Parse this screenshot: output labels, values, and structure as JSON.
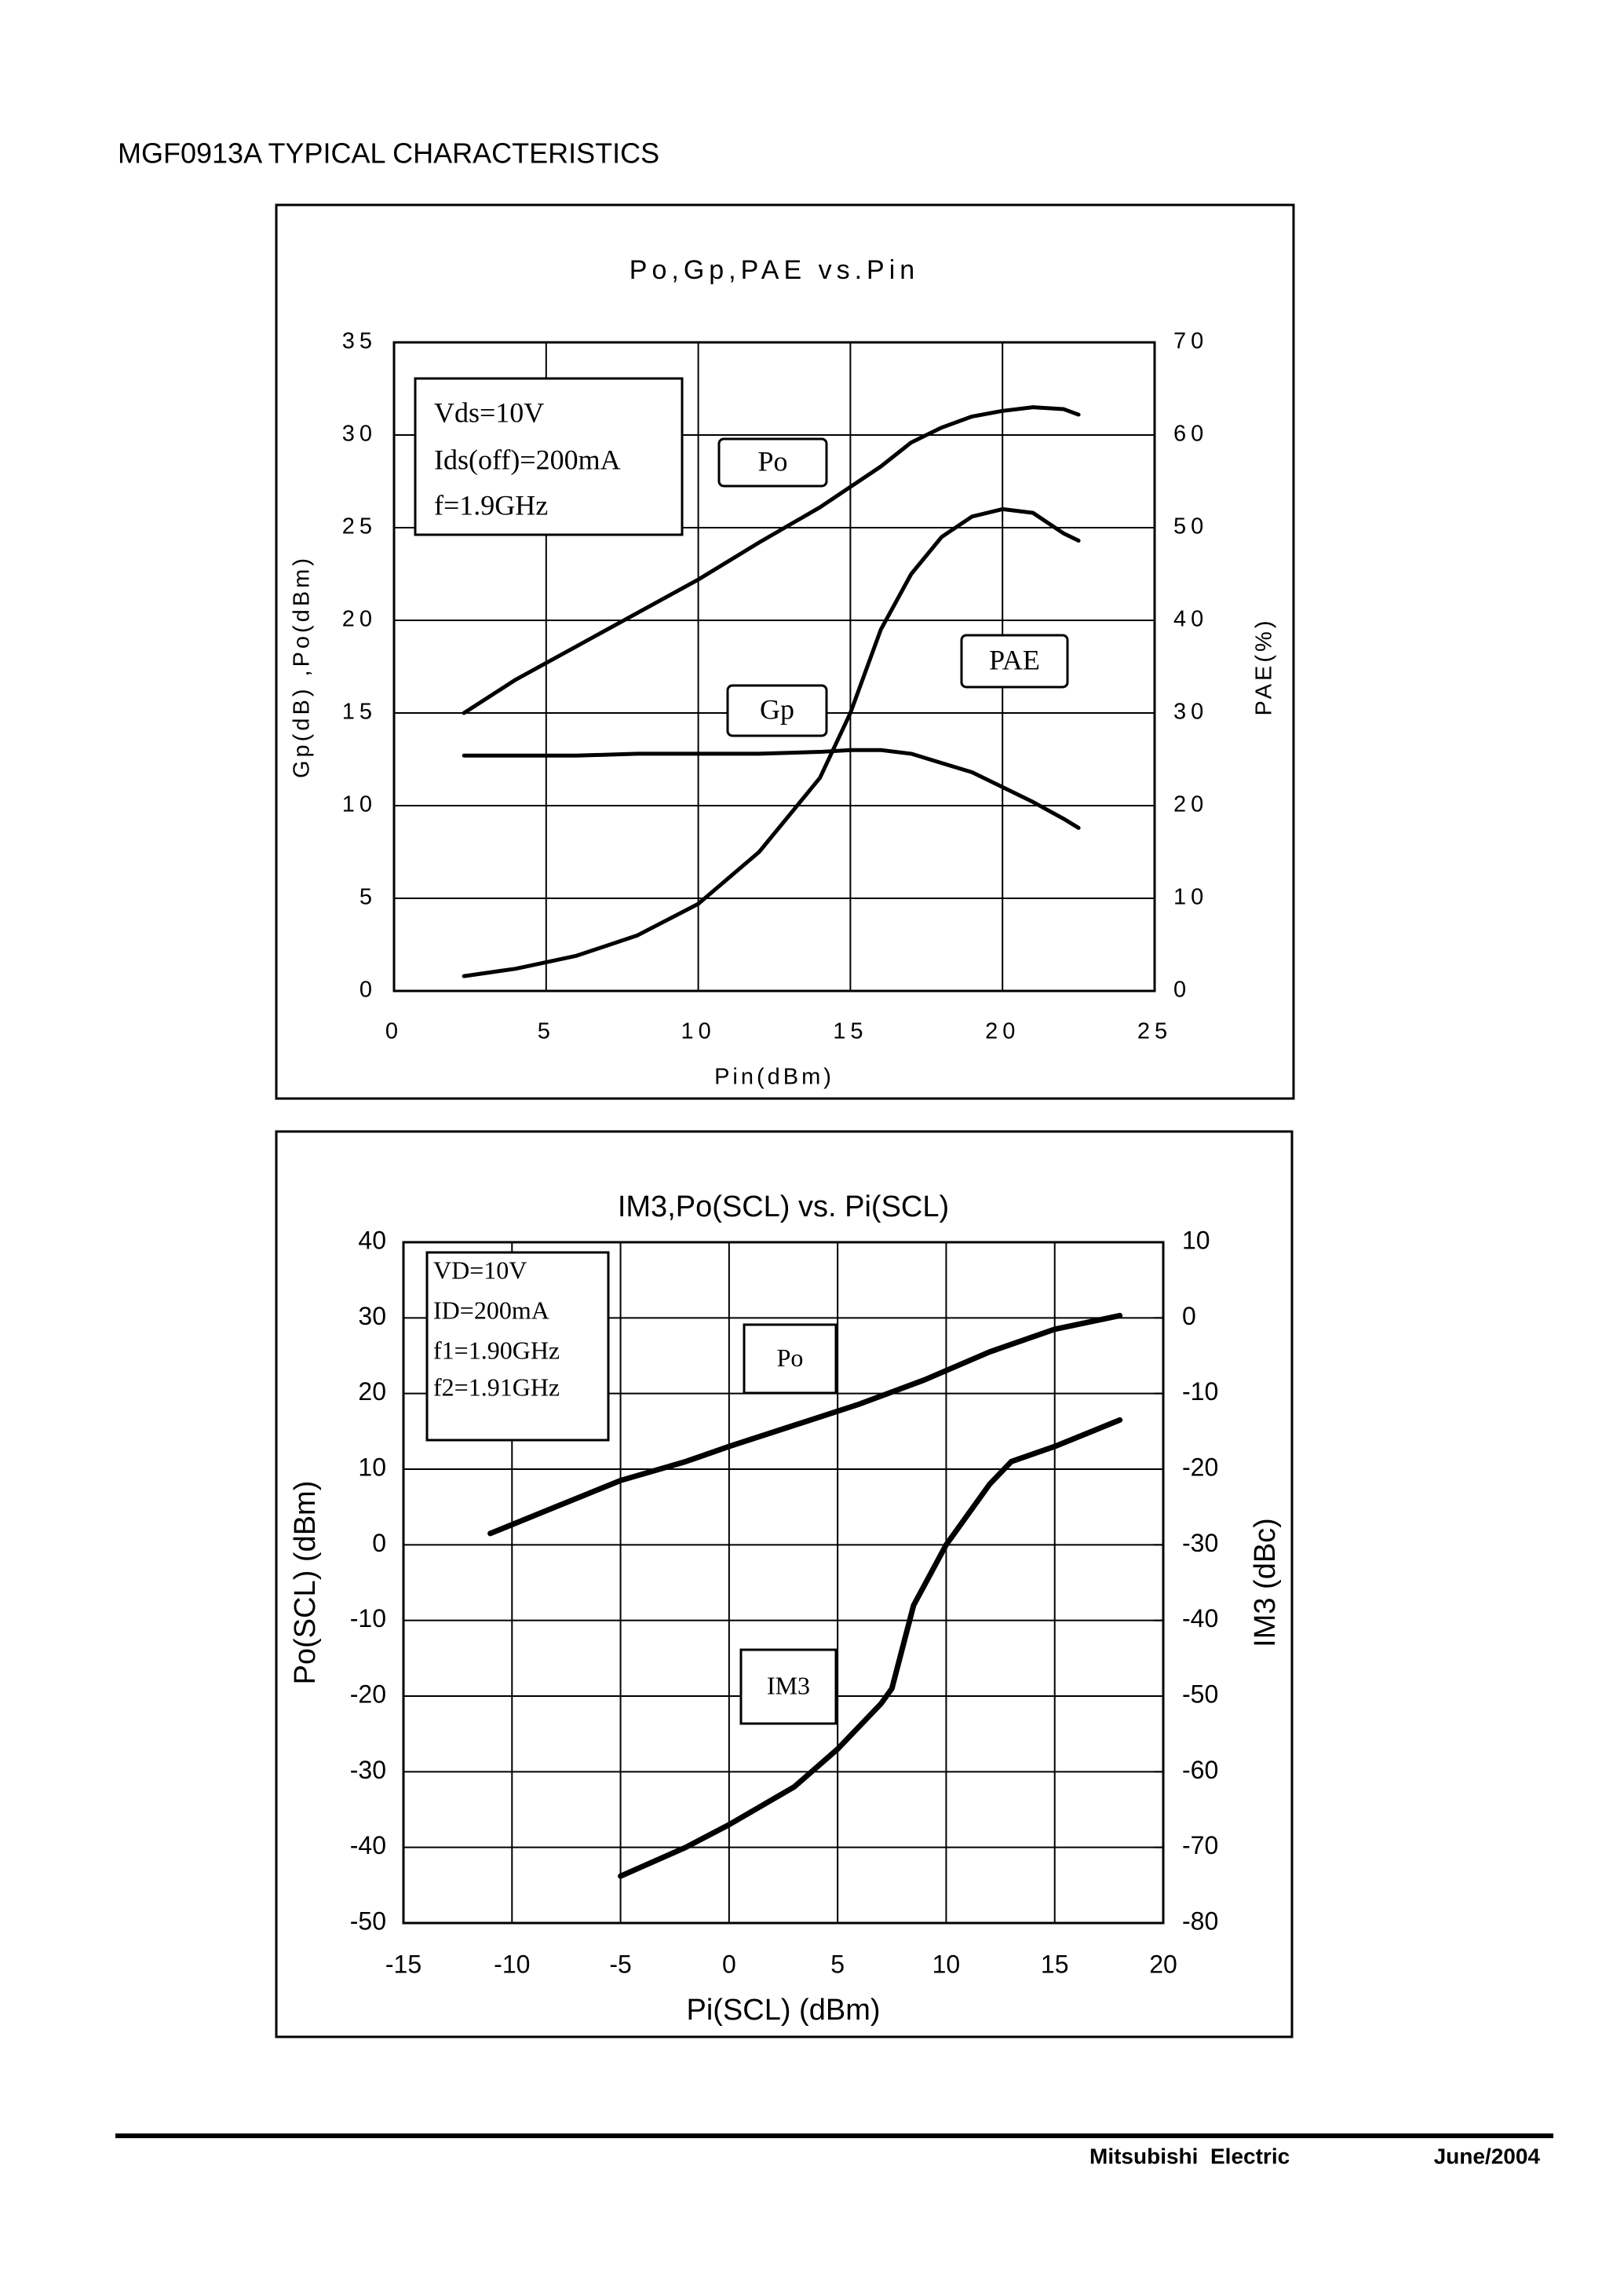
{
  "header": {
    "title": "MGF0913A TYPICAL CHARACTERISTICS"
  },
  "chart_data": [
    {
      "type": "line",
      "title": "Po,Gp,PAE vs.Pin",
      "x_label": "Pin(dBm)",
      "y_label": "Gp(dB) ,Po(dBm)",
      "y2_label": "PAE(%)",
      "annotations": [
        "Vds=10V",
        "Ids(off)=200mA",
        "f=1.9GHz"
      ],
      "xlim": [
        0,
        25
      ],
      "xticks": [
        0,
        5,
        10,
        15,
        20,
        25
      ],
      "ylim": [
        0,
        35
      ],
      "yticks": [
        0,
        5,
        10,
        15,
        20,
        25,
        30,
        35
      ],
      "y2lim": [
        0,
        70
      ],
      "y2ticks": [
        0,
        10,
        20,
        30,
        40,
        50,
        60,
        70
      ],
      "grid": true,
      "x": [
        2.3,
        4,
        6,
        8,
        10,
        12,
        14,
        15,
        16,
        17,
        18,
        19,
        20,
        21,
        22,
        22.5
      ],
      "series": [
        {
          "name": "Po",
          "color": "#000000",
          "values": [
            15,
            16.8,
            18.6,
            20.4,
            22.2,
            24.2,
            26.1,
            27.2,
            28.3,
            29.6,
            30.4,
            31.0,
            31.3,
            31.5,
            31.4,
            31.1
          ]
        },
        {
          "name": "Gp",
          "color": "#000000",
          "values": [
            12.7,
            12.7,
            12.7,
            12.8,
            12.8,
            12.8,
            12.9,
            13.0,
            13.0,
            12.8,
            12.3,
            11.8,
            11.0,
            10.2,
            9.3,
            8.8
          ]
        },
        {
          "name": "PAE",
          "color": "#000000",
          "axis": "y2",
          "values": [
            1.6,
            2.4,
            3.8,
            6,
            9.4,
            15,
            23,
            30,
            39,
            45,
            49,
            51.2,
            52,
            51.6,
            49.4,
            48.6
          ]
        }
      ]
    },
    {
      "type": "line",
      "title": "IM3,Po(SCL) vs. Pi(SCL)",
      "x_label": "Pi(SCL) (dBm)",
      "y_label": "Po(SCL) (dBm)",
      "y2_label": "IM3 (dBc)",
      "annotations": [
        "VD=10V",
        "ID=200mA",
        "f1=1.90GHz",
        "f2=1.91GHz"
      ],
      "xlim": [
        -15,
        20
      ],
      "xticks": [
        -15,
        -10,
        -5,
        0,
        5,
        10,
        15,
        20
      ],
      "ylim": [
        -50,
        40
      ],
      "yticks": [
        -50,
        -40,
        -30,
        -20,
        -10,
        0,
        10,
        20,
        30,
        40
      ],
      "y2lim": [
        -80,
        10
      ],
      "y2ticks": [
        -80,
        -70,
        -60,
        -50,
        -40,
        -30,
        -20,
        -10,
        0,
        10
      ],
      "grid": true,
      "series": [
        {
          "name": "Po",
          "color": "#000000",
          "x": [
            -11,
            -8,
            -5,
            -2,
            0,
            3,
            6,
            9,
            12,
            15,
            18
          ],
          "values": [
            1.5,
            5,
            8.5,
            11,
            13,
            15.8,
            18.6,
            21.8,
            25.5,
            28.5,
            30.3
          ]
        },
        {
          "name": "IM3",
          "color": "#000000",
          "axis": "y2",
          "x": [
            -5,
            -2,
            0,
            3,
            5,
            7,
            7.5,
            8.5,
            10,
            12,
            13,
            15,
            18
          ],
          "values": [
            -73.8,
            -70,
            -67,
            -62,
            -57,
            -51,
            -49,
            -38,
            -30,
            -22,
            -19,
            -17,
            -13.5
          ]
        }
      ]
    }
  ],
  "footer": {
    "company": "Mitsubishi  Electric",
    "date": "June/2004"
  }
}
